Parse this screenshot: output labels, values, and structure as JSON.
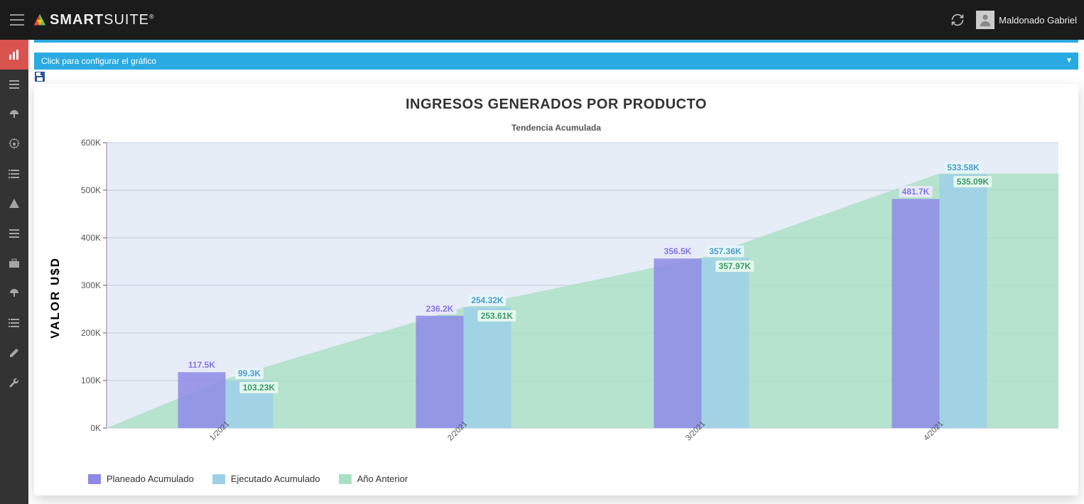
{
  "header": {
    "brand_a": "SMART",
    "brand_b": "SUITE",
    "user_name": "Maldonado Gabriel"
  },
  "config_bar": {
    "label": "Click para configurar el gráfico"
  },
  "chart": {
    "type": "bar+area",
    "title": "INGRESOS GENERADOS POR PRODUCTO",
    "subtitle": "Tendencia Acumulada",
    "yaxis_label": "VALOR U$D",
    "ylim": [
      0,
      600
    ],
    "ytick_step": 100,
    "ytick_suffix": "K",
    "plot_bg": "#e6edf7",
    "grid_color": "#bfc9d9",
    "categories": [
      "1/2021",
      "2/2021",
      "3/2021",
      "4/2021"
    ],
    "series": {
      "planeado": {
        "label": "Planeado Acumulado",
        "color": "#8e8ae6",
        "text_color": "#7d78e0",
        "badge_bg": "#e9e8fb",
        "values": [
          117.5,
          236.2,
          356.5,
          481.7
        ],
        "labels": [
          "117.5K",
          "236.2K",
          "356.5K",
          "481.7K"
        ]
      },
      "ejecutado": {
        "label": "Ejecutado Acumulado",
        "color": "#9dd0e7",
        "text_color": "#4aa0c4",
        "badge_bg": "#e6f4fb",
        "values": [
          99.3,
          254.32,
          357.36,
          533.58
        ],
        "labels": [
          "99.3K",
          "254.32K",
          "357.36K",
          "533.58K"
        ]
      },
      "anterior": {
        "label": "Año Anterior",
        "color_area": "#a9e0c2",
        "color_bar": "#6ec4a5",
        "text_color": "#3a9a6a",
        "badge_bg": "#e4f7ec",
        "values": [
          103.23,
          253.61,
          357.97,
          535.09
        ],
        "labels": [
          "103.23K",
          "253.61K",
          "357.97K",
          "535.09K"
        ]
      }
    },
    "bar_group_gap_ratio": 0.52,
    "bar_width_ratio": 0.16,
    "area_opacity": 0.8,
    "bar_opacity": 0.85
  }
}
